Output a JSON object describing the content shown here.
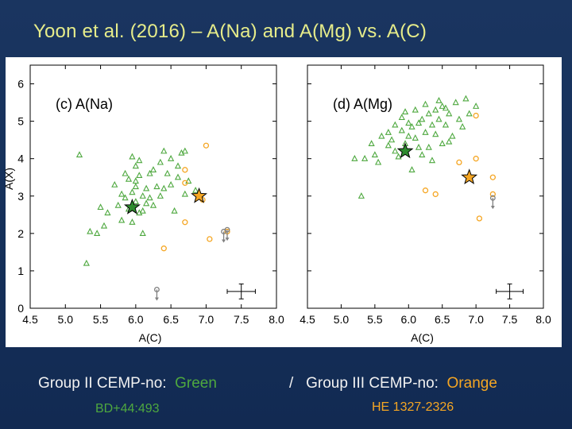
{
  "slide": {
    "title": "Yoon et al. (2016) – A(Na) and A(Mg) vs. A(C)",
    "caption_left_prefix": "Group II CEMP-no:",
    "caption_left_accent": "Green",
    "caption_sep": "/",
    "caption_right_prefix": "Group III CEMP-no:",
    "caption_right_accent": "Orange",
    "star_green_name": "BD+44:493",
    "star_orange_name": "HE 1327-2326",
    "colors": {
      "green": "#4ea83f",
      "orange": "#f5a623",
      "title": "#e6ec8a",
      "gray": "#808080"
    }
  },
  "chart_data": [
    {
      "type": "scatter",
      "panel_label": "(c) A(Na)",
      "xlabel": "A(C)",
      "ylabel": "A(X)",
      "xlim": [
        4.5,
        8.0
      ],
      "ylim": [
        0,
        6.5
      ],
      "xticks": [
        "4.5",
        "5.0",
        "5.5",
        "6.0",
        "6.5",
        "7.0",
        "7.5",
        "8.0"
      ],
      "yticks": [
        "0",
        "1",
        "2",
        "3",
        "4",
        "5",
        "6"
      ],
      "series": [
        {
          "name": "Group II (triangles)",
          "marker": "triangle",
          "color": "#4ea83f",
          "points": [
            [
              5.2,
              4.1
            ],
            [
              5.3,
              1.2
            ],
            [
              5.35,
              2.05
            ],
            [
              5.45,
              2.0
            ],
            [
              5.5,
              2.7
            ],
            [
              5.55,
              2.2
            ],
            [
              5.6,
              2.55
            ],
            [
              5.7,
              3.3
            ],
            [
              5.75,
              2.75
            ],
            [
              5.8,
              2.35
            ],
            [
              5.8,
              3.05
            ],
            [
              5.85,
              3.6
            ],
            [
              5.85,
              2.95
            ],
            [
              5.9,
              3.45
            ],
            [
              5.9,
              2.65
            ],
            [
              5.95,
              3.1
            ],
            [
              5.95,
              2.3
            ],
            [
              6.0,
              3.25
            ],
            [
              6.0,
              2.85
            ],
            [
              6.0,
              3.8
            ],
            [
              6.05,
              2.55
            ],
            [
              6.05,
              3.55
            ],
            [
              6.1,
              3.0
            ],
            [
              6.1,
              2.6
            ],
            [
              6.1,
              2.0
            ],
            [
              6.15,
              3.2
            ],
            [
              6.15,
              2.8
            ],
            [
              6.2,
              3.6
            ],
            [
              6.2,
              2.95
            ],
            [
              6.25,
              2.75
            ],
            [
              6.3,
              3.25
            ],
            [
              6.35,
              3.9
            ],
            [
              6.35,
              3.0
            ],
            [
              6.4,
              3.2
            ],
            [
              6.45,
              3.6
            ],
            [
              6.5,
              4.0
            ],
            [
              6.5,
              3.3
            ],
            [
              6.55,
              2.6
            ],
            [
              6.6,
              3.5
            ],
            [
              6.65,
              4.15
            ],
            [
              6.7,
              4.2
            ],
            [
              6.7,
              3.05
            ],
            [
              6.75,
              3.4
            ],
            [
              6.85,
              3.15
            ],
            [
              5.95,
              4.05
            ],
            [
              6.05,
              3.95
            ],
            [
              6.25,
              3.7
            ],
            [
              6.0,
              3.4
            ],
            [
              6.6,
              3.8
            ],
            [
              6.4,
              4.2
            ]
          ]
        },
        {
          "name": "Group III (circles)",
          "marker": "circle",
          "color": "#f5a623",
          "points": [
            [
              6.4,
              1.6
            ],
            [
              6.7,
              3.7
            ],
            [
              6.7,
              3.35
            ],
            [
              6.7,
              2.3
            ],
            [
              6.95,
              2.9
            ],
            [
              7.0,
              4.35
            ],
            [
              7.05,
              1.85
            ],
            [
              7.3,
              2.05
            ]
          ]
        },
        {
          "name": "Limits (gray)",
          "marker": "arrow-down",
          "color": "#808080",
          "points": [
            [
              6.3,
              0.5
            ],
            [
              7.25,
              2.05
            ],
            [
              7.3,
              2.1
            ]
          ]
        }
      ],
      "stars": [
        {
          "name": "Group II star",
          "color": "#2e8b2e",
          "x": 5.95,
          "y": 2.7
        },
        {
          "name": "Group III star",
          "color": "#f5a623",
          "x": 6.9,
          "y": 3.0
        }
      ],
      "error_bar": {
        "x": 7.5,
        "y": 0.45,
        "xerr": 0.2,
        "yerr": 0.2
      }
    },
    {
      "type": "scatter",
      "panel_label": "(d) A(Mg)",
      "xlabel": "A(C)",
      "ylabel": "",
      "xlim": [
        4.5,
        8.0
      ],
      "ylim": [
        0,
        6.5
      ],
      "xticks": [
        "4.5",
        "5.0",
        "5.5",
        "6.0",
        "6.5",
        "7.0",
        "7.5",
        "8.0"
      ],
      "yticks": [],
      "series": [
        {
          "name": "Group II (triangles)",
          "marker": "triangle",
          "color": "#4ea83f",
          "points": [
            [
              5.2,
              4.0
            ],
            [
              5.3,
              3.0
            ],
            [
              5.35,
              4.0
            ],
            [
              5.45,
              4.4
            ],
            [
              5.5,
              4.1
            ],
            [
              5.55,
              3.9
            ],
            [
              5.6,
              4.6
            ],
            [
              5.7,
              4.35
            ],
            [
              5.7,
              4.7
            ],
            [
              5.75,
              4.5
            ],
            [
              5.8,
              4.2
            ],
            [
              5.8,
              4.9
            ],
            [
              5.85,
              4.05
            ],
            [
              5.9,
              4.75
            ],
            [
              5.9,
              5.1
            ],
            [
              5.95,
              4.4
            ],
            [
              6.0,
              4.6
            ],
            [
              6.0,
              4.95
            ],
            [
              6.05,
              3.7
            ],
            [
              6.05,
              4.85
            ],
            [
              6.1,
              5.3
            ],
            [
              6.1,
              4.55
            ],
            [
              6.15,
              4.95
            ],
            [
              6.2,
              4.1
            ],
            [
              6.2,
              5.05
            ],
            [
              6.25,
              4.7
            ],
            [
              6.3,
              5.2
            ],
            [
              6.3,
              4.3
            ],
            [
              6.35,
              4.9
            ],
            [
              6.35,
              3.95
            ],
            [
              6.4,
              5.3
            ],
            [
              6.4,
              4.65
            ],
            [
              6.45,
              5.05
            ],
            [
              6.5,
              4.4
            ],
            [
              6.5,
              5.4
            ],
            [
              6.55,
              4.9
            ],
            [
              6.6,
              5.2
            ],
            [
              6.65,
              4.6
            ],
            [
              6.7,
              5.5
            ],
            [
              6.75,
              5.05
            ],
            [
              6.8,
              4.85
            ],
            [
              6.85,
              5.6
            ],
            [
              6.9,
              5.2
            ],
            [
              7.0,
              5.4
            ],
            [
              6.6,
              4.45
            ],
            [
              6.25,
              5.45
            ],
            [
              5.95,
              5.25
            ],
            [
              6.45,
              5.55
            ],
            [
              6.15,
              4.3
            ],
            [
              6.55,
              5.35
            ]
          ]
        },
        {
          "name": "Group III (circles)",
          "marker": "circle",
          "color": "#f5a623",
          "points": [
            [
              6.25,
              3.15
            ],
            [
              6.4,
              3.05
            ],
            [
              6.75,
              3.9
            ],
            [
              7.0,
              5.15
            ],
            [
              7.0,
              4.0
            ],
            [
              7.05,
              2.4
            ],
            [
              7.25,
              3.5
            ],
            [
              7.25,
              3.05
            ]
          ]
        },
        {
          "name": "Limits (gray)",
          "marker": "arrow-down",
          "color": "#808080",
          "points": [
            [
              7.25,
              2.95
            ]
          ]
        }
      ],
      "stars": [
        {
          "name": "Group II star",
          "color": "#2e8b2e",
          "x": 5.95,
          "y": 4.2
        },
        {
          "name": "Group III star",
          "color": "#f5a623",
          "x": 6.9,
          "y": 3.5
        }
      ],
      "error_bar": {
        "x": 7.5,
        "y": 0.45,
        "xerr": 0.2,
        "yerr": 0.2
      }
    }
  ]
}
